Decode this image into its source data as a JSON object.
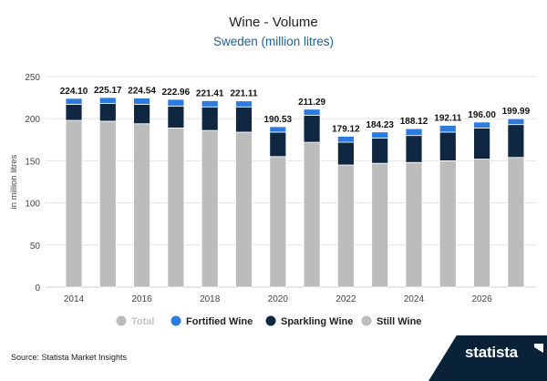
{
  "title": "Wine - Volume",
  "subtitle": "Sweden (million litres)",
  "source": "Source: Statista Market Insights",
  "logo_text": "statista",
  "colors": {
    "total": "#bcbcbc",
    "fortified": "#2b7be0",
    "sparkling": "#0f2741",
    "still": "#bcbcbc",
    "grid": "#e3e3e3",
    "subtitle": "#1b5f9e"
  },
  "chart_data": {
    "type": "bar",
    "stacked": true,
    "years": [
      2014,
      2015,
      2016,
      2017,
      2018,
      2019,
      2020,
      2021,
      2022,
      2023,
      2024,
      2025,
      2026,
      2027
    ],
    "x_tick_labels": [
      "2014",
      "2016",
      "2018",
      "2020",
      "2022",
      "2024",
      "2026"
    ],
    "ylabel": "in million litres",
    "ylim": [
      0,
      250
    ],
    "y_ticks": [
      0,
      50,
      100,
      150,
      200,
      250
    ],
    "grid": true,
    "legend_position": "bottom",
    "totals": [
      224.1,
      225.17,
      224.54,
      222.96,
      221.41,
      221.11,
      190.53,
      211.29,
      179.12,
      184.23,
      188.12,
      192.11,
      196.0,
      199.99
    ],
    "total_labels": [
      "224.10",
      "225.17",
      "224.54",
      "222.96",
      "221.41",
      "221.11",
      "190.53",
      "211.29",
      "179.12",
      "184.23",
      "188.12",
      "192.11",
      "196.00",
      "199.99"
    ],
    "series": [
      {
        "name": "Still Wine",
        "values": [
          198,
          197,
          194,
          189,
          186,
          184,
          155,
          172,
          145,
          147,
          148,
          150,
          152,
          154
        ]
      },
      {
        "name": "Sparkling Wine",
        "values": [
          19,
          21,
          23,
          26,
          28,
          30,
          29,
          32,
          27,
          30,
          32,
          34,
          37,
          39
        ]
      },
      {
        "name": "Fortified Wine",
        "values": [
          7.1,
          7.17,
          7.54,
          7.96,
          7.41,
          7.11,
          6.53,
          7.29,
          7.12,
          7.23,
          8.12,
          8.11,
          7.0,
          6.99
        ]
      }
    ],
    "legend": [
      "Total",
      "Fortified Wine",
      "Sparkling Wine",
      "Still Wine"
    ]
  }
}
